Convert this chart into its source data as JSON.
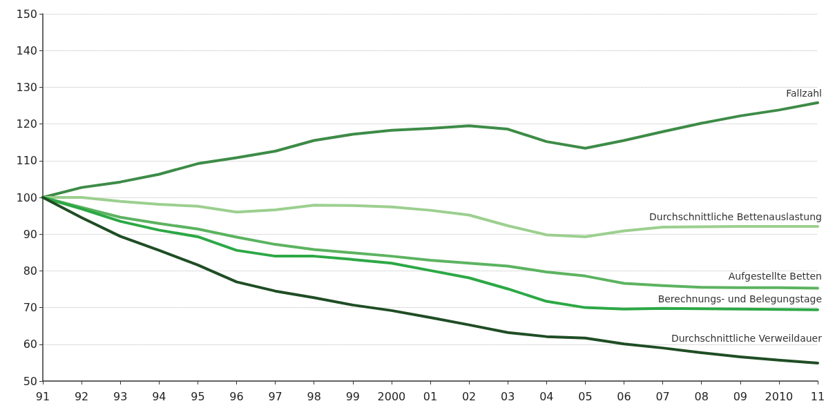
{
  "chart_data": {
    "type": "line",
    "categories": [
      "91",
      "92",
      "93",
      "94",
      "95",
      "96",
      "97",
      "98",
      "99",
      "2000",
      "01",
      "02",
      "03",
      "04",
      "05",
      "06",
      "07",
      "08",
      "09",
      "2010",
      "11"
    ],
    "ylim": [
      50,
      150
    ],
    "yticks": [
      50,
      60,
      70,
      80,
      90,
      100,
      110,
      120,
      130,
      140,
      150
    ],
    "grid": "y",
    "legend": false,
    "marker": "none",
    "line_style": "solid",
    "series": [
      {
        "name": "Fallzahl",
        "color": "#3d8b47",
        "values": [
          100,
          102.7,
          104.2,
          106.3,
          109.2,
          110.8,
          112.6,
          115.5,
          117.2,
          118.3,
          118.8,
          119.5,
          118.6,
          115.2,
          113.4,
          115.5,
          117.9,
          120.2,
          122.2,
          123.8,
          125.8
        ]
      },
      {
        "name": "Durchschnittliche Bettenauslastung",
        "color": "#9ccf8f",
        "values": [
          100,
          100,
          98.9,
          98.1,
          97.6,
          96.0,
          96.6,
          97.9,
          97.8,
          97.4,
          96.5,
          95.2,
          92.3,
          89.8,
          89.3,
          90.9,
          91.9,
          92.0,
          92.1,
          92.1,
          92.1
        ]
      },
      {
        "name": "Aufgestellte Betten",
        "color": "#5cb360",
        "values": [
          100,
          97.3,
          94.6,
          92.9,
          91.4,
          89.2,
          87.2,
          85.8,
          84.9,
          84.0,
          82.9,
          82.1,
          81.3,
          79.7,
          78.6,
          76.6,
          76.0,
          75.5,
          75.4,
          75.4,
          75.3
        ]
      },
      {
        "name": "Berechnungs- und Belegungstage",
        "color": "#2ca845",
        "values": [
          100,
          96.9,
          93.5,
          91.1,
          89.3,
          85.6,
          84.0,
          84.0,
          83.1,
          82.1,
          80.1,
          78.1,
          75.1,
          71.7,
          70.0,
          69.6,
          69.8,
          69.7,
          69.6,
          69.5,
          69.4
        ]
      },
      {
        "name": "Durchschnittliche Verweildauer",
        "color": "#1f4d24",
        "values": [
          100,
          94.5,
          89.4,
          85.6,
          81.6,
          77.0,
          74.5,
          72.7,
          70.7,
          69.2,
          67.3,
          65.3,
          63.2,
          62.1,
          61.7,
          60.1,
          59.0,
          57.7,
          56.6,
          55.7,
          54.9
        ]
      }
    ]
  }
}
